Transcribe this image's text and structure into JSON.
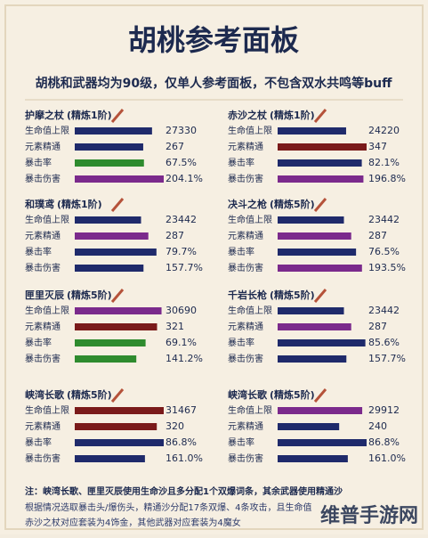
{
  "header": {
    "title": "胡桃参考面板",
    "subtitle": "胡桃和武器均为90级，仅单人参考面板，不包含双水共鸣等buff"
  },
  "panels": [
    {
      "name": "护摩之杖",
      "refine": "(精炼1阶)",
      "rows": [
        {
          "stat": "生命值上限",
          "value": "27330",
          "color": "#1f2a6b"
        },
        {
          "stat": "元素精通",
          "value": "267",
          "color": "#1f2a6b"
        },
        {
          "stat": "暴击率",
          "value": "67.5%",
          "color": "#2e8b2e"
        },
        {
          "stat": "暴击伤害",
          "value": "204.1%",
          "color": "#7b2a8c"
        }
      ]
    },
    {
      "name": "赤沙之杖",
      "refine": "(精炼1阶)",
      "rows": [
        {
          "stat": "生命值上限",
          "value": "24220",
          "color": "#1f2a6b"
        },
        {
          "stat": "元素精通",
          "value": "347",
          "color": "#7a1a1a"
        },
        {
          "stat": "暴击率",
          "value": "82.1%",
          "color": "#1f2a6b"
        },
        {
          "stat": "暴击伤害",
          "value": "196.8%",
          "color": "#7b2a8c"
        }
      ]
    },
    {
      "name": "和璞鸢",
      "refine": "(精炼1阶)",
      "rows": [
        {
          "stat": "生命值上限",
          "value": "23442",
          "color": "#1f2a6b"
        },
        {
          "stat": "元素精通",
          "value": "287",
          "color": "#7b2a8c"
        },
        {
          "stat": "暴击率",
          "value": "79.7%",
          "color": "#1f2a6b"
        },
        {
          "stat": "暴击伤害",
          "value": "157.7%",
          "color": "#1f2a6b"
        }
      ]
    },
    {
      "name": "决斗之枪",
      "refine": "(精炼5阶)",
      "rows": [
        {
          "stat": "生命值上限",
          "value": "23442",
          "color": "#1f2a6b"
        },
        {
          "stat": "元素精通",
          "value": "287",
          "color": "#7b2a8c"
        },
        {
          "stat": "暴击率",
          "value": "76.5%",
          "color": "#1f2a6b"
        },
        {
          "stat": "暴击伤害",
          "value": "193.5%",
          "color": "#7b2a8c"
        }
      ]
    },
    {
      "name": "匣里灭辰",
      "refine": "(精炼5阶)",
      "rows": [
        {
          "stat": "生命值上限",
          "value": "30690",
          "color": "#7b2a8c"
        },
        {
          "stat": "元素精通",
          "value": "321",
          "color": "#7a1a1a"
        },
        {
          "stat": "暴击率",
          "value": "69.1%",
          "color": "#2e8b2e"
        },
        {
          "stat": "暴击伤害",
          "value": "141.2%",
          "color": "#2e8b2e"
        }
      ]
    },
    {
      "name": "千岩长枪",
      "refine": "(精炼5阶)",
      "rows": [
        {
          "stat": "生命值上限",
          "value": "23442",
          "color": "#1f2a6b"
        },
        {
          "stat": "元素精通",
          "value": "287",
          "color": "#7b2a8c"
        },
        {
          "stat": "暴击率",
          "value": "85.6%",
          "color": "#1f2a6b"
        },
        {
          "stat": "暴击伤害",
          "value": "157.7%",
          "color": "#1f2a6b"
        }
      ]
    },
    {
      "name": "峡湾长歌",
      "refine": "(精炼5阶)",
      "rows": [
        {
          "stat": "生命值上限",
          "value": "31467",
          "color": "#7a1a1a"
        },
        {
          "stat": "元素精通",
          "value": "320",
          "color": "#7a1a1a"
        },
        {
          "stat": "暴击率",
          "value": "86.8%",
          "color": "#1f2a6b"
        },
        {
          "stat": "暴击伤害",
          "value": "161.0%",
          "color": "#1f2a6b"
        }
      ]
    },
    {
      "name": "峡湾长歌",
      "refine": "(精炼5阶)",
      "rows": [
        {
          "stat": "生命值上限",
          "value": "29912",
          "color": "#7b2a8c"
        },
        {
          "stat": "元素精通",
          "value": "240",
          "color": "#1f2a6b"
        },
        {
          "stat": "暴击率",
          "value": "86.8%",
          "color": "#1f2a6b"
        },
        {
          "stat": "暴击伤害",
          "value": "161.0%",
          "color": "#1f2a6b"
        }
      ]
    }
  ],
  "notes": [
    "注：峡湾长歌、匣里灭辰使用生命沙且多分配1个双爆词条，其余武器使用精通沙",
    "根据情况选取暴击头/爆伤头，精通沙分配17条双爆、4条攻击，且生命值",
    "赤沙之杖对应套装为4饰金，其他武器对应套装为4魔女"
  ],
  "watermark": "维普手游网"
}
